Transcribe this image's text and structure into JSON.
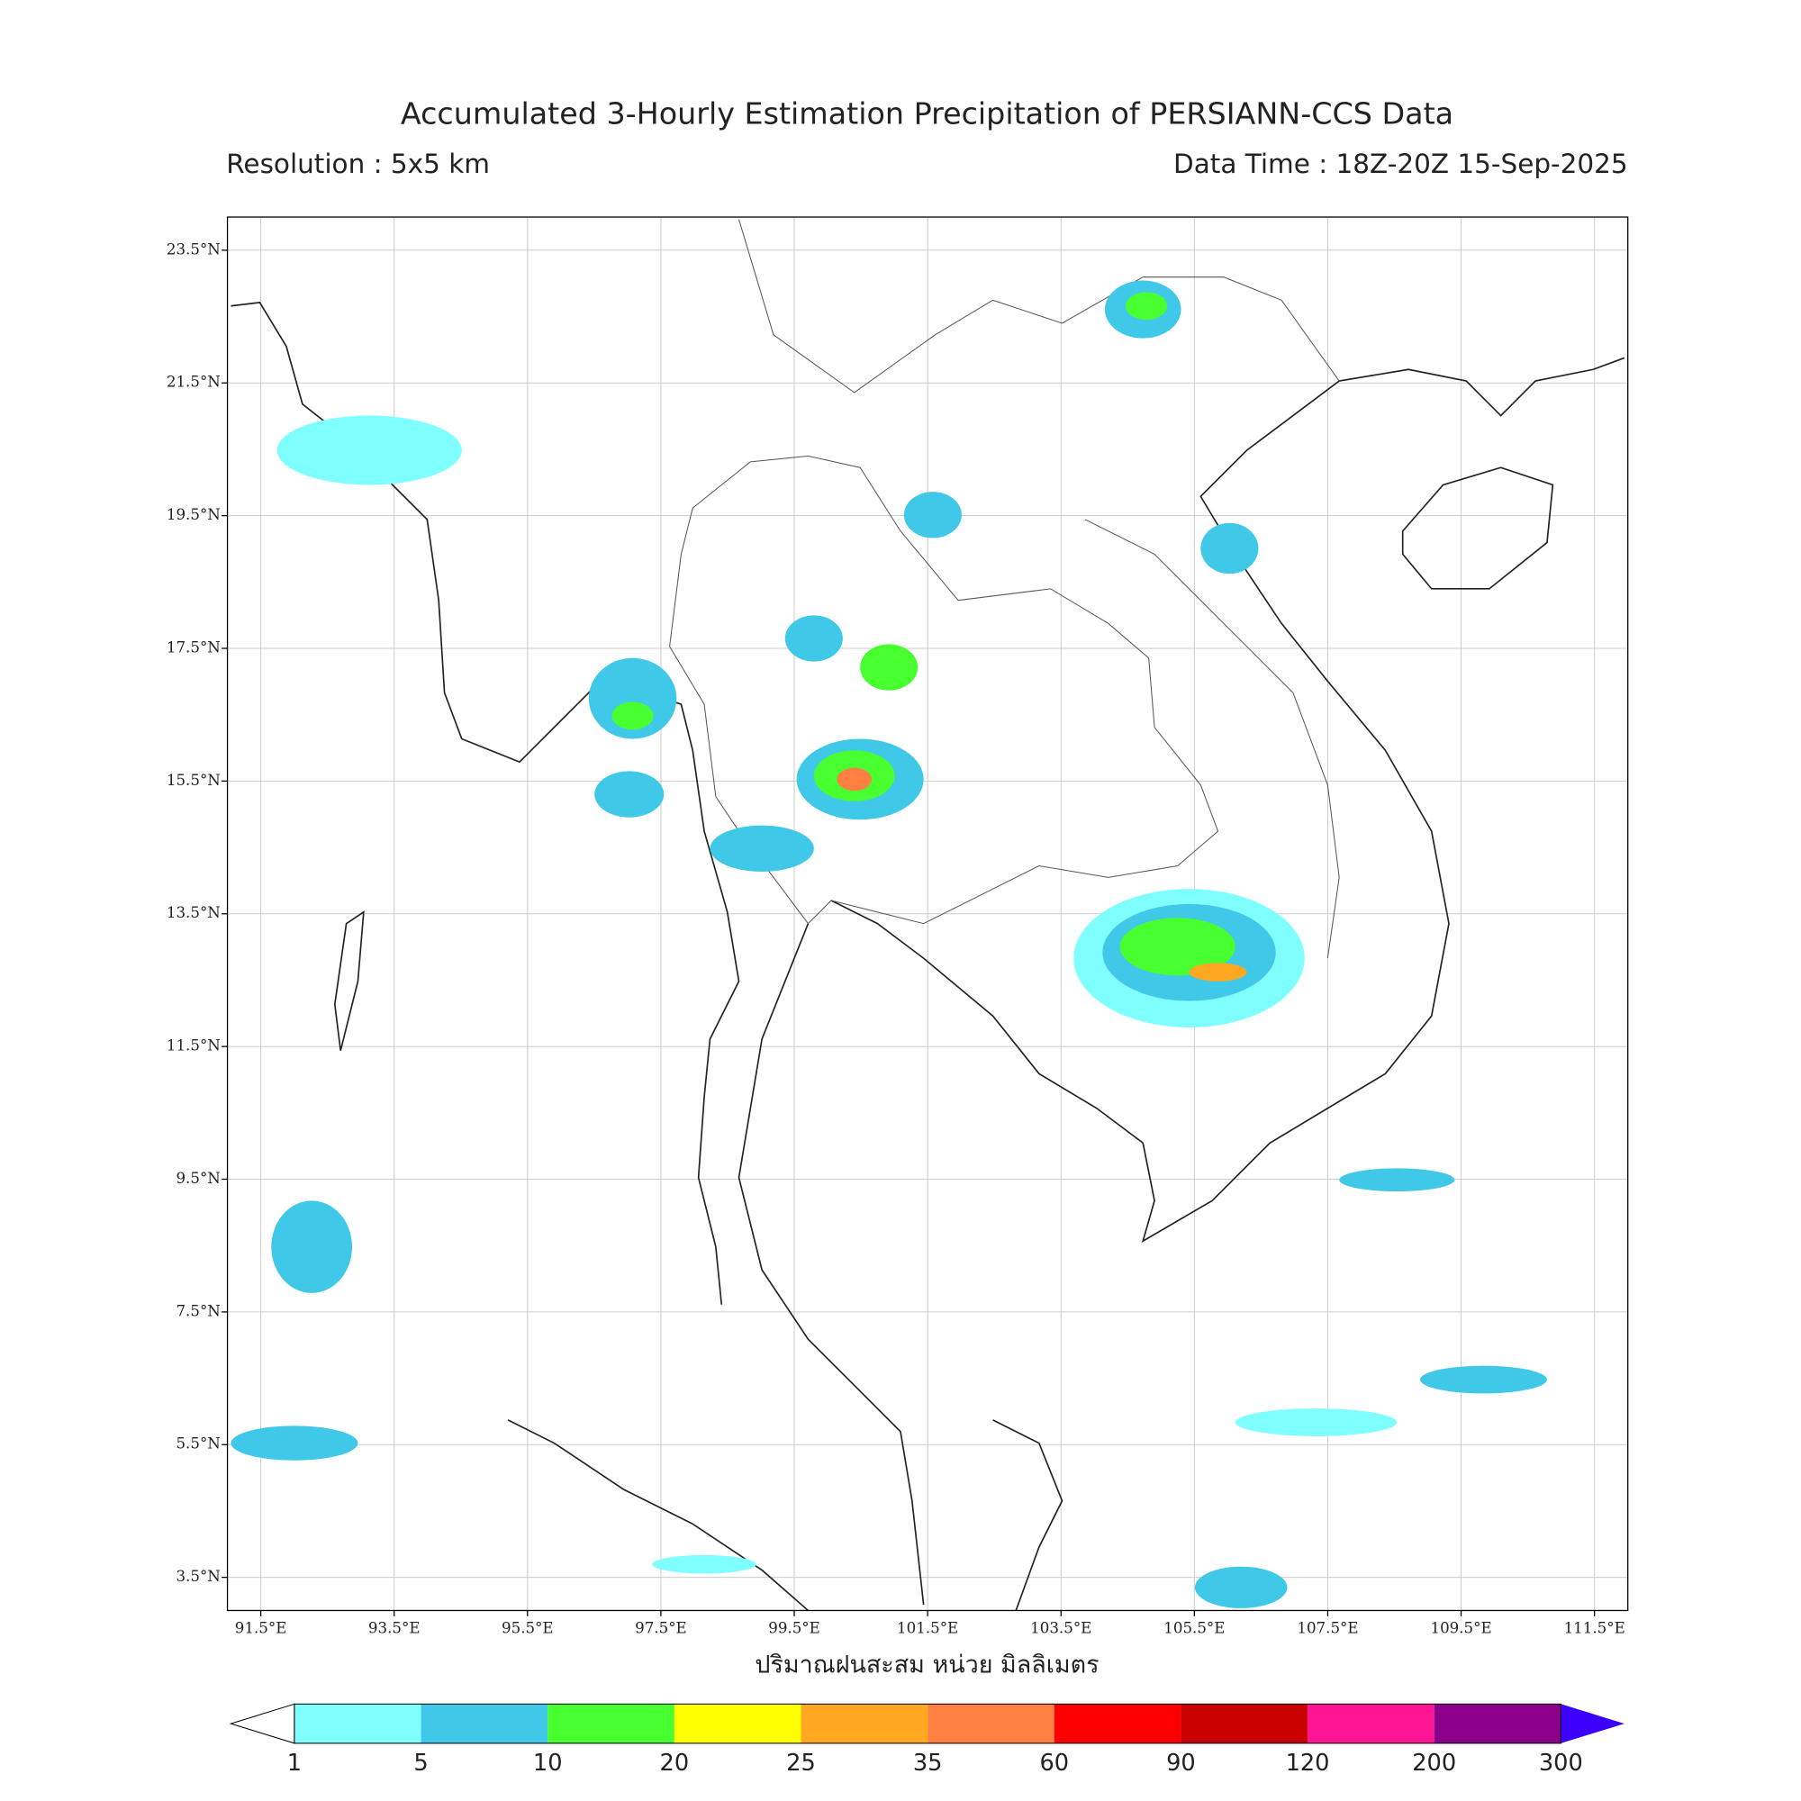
{
  "title": "Accumulated 3-Hourly Estimation Precipitation of PERSIANN-CCS Data",
  "subtitle_left": "Resolution : 5x5 km",
  "subtitle_right": "Data Time : 18Z-20Z 15-Sep-2025",
  "map": {
    "lonlim": [
      91,
      112
    ],
    "latlim": [
      3,
      24
    ],
    "lon_ticks": [
      {
        "value": 91.5,
        "label": "91.5°E"
      },
      {
        "value": 93.5,
        "label": "93.5°E"
      },
      {
        "value": 95.5,
        "label": "95.5°E"
      },
      {
        "value": 97.5,
        "label": "97.5°E"
      },
      {
        "value": 99.5,
        "label": "99.5°E"
      },
      {
        "value": 101.5,
        "label": "101.5°E"
      },
      {
        "value": 103.5,
        "label": "103.5°E"
      },
      {
        "value": 105.5,
        "label": "105.5°E"
      },
      {
        "value": 107.5,
        "label": "107.5°E"
      },
      {
        "value": 109.5,
        "label": "109.5°E"
      },
      {
        "value": 111.5,
        "label": "111.5°E"
      }
    ],
    "lat_ticks": [
      {
        "value": 23.5,
        "label": "23.5°N"
      },
      {
        "value": 21.5,
        "label": "21.5°N"
      },
      {
        "value": 19.5,
        "label": "19.5°N"
      },
      {
        "value": 17.5,
        "label": "17.5°N"
      },
      {
        "value": 15.5,
        "label": "15.5°N"
      },
      {
        "value": 13.5,
        "label": "13.5°N"
      },
      {
        "value": 11.5,
        "label": "11.5°N"
      },
      {
        "value": 9.5,
        "label": "9.5°N"
      },
      {
        "value": 7.5,
        "label": "7.5°N"
      },
      {
        "value": 5.5,
        "label": "5.5°N"
      },
      {
        "value": 3.5,
        "label": "3.5°N"
      }
    ],
    "grid": true
  },
  "colorbar": {
    "label": "ปริมาณฝนสะสม หน่วย มิลลิเมตร",
    "bounds": [
      1,
      5,
      10,
      20,
      25,
      35,
      60,
      90,
      120,
      200,
      300
    ],
    "colors": [
      "#80ffff",
      "#40c8e8",
      "#48ff30",
      "#ffff00",
      "#ffa820",
      "#ff8040",
      "#ff0000",
      "#c80000",
      "#ff1493",
      "#8b008b"
    ],
    "over_color": "#3c00ff"
  }
}
